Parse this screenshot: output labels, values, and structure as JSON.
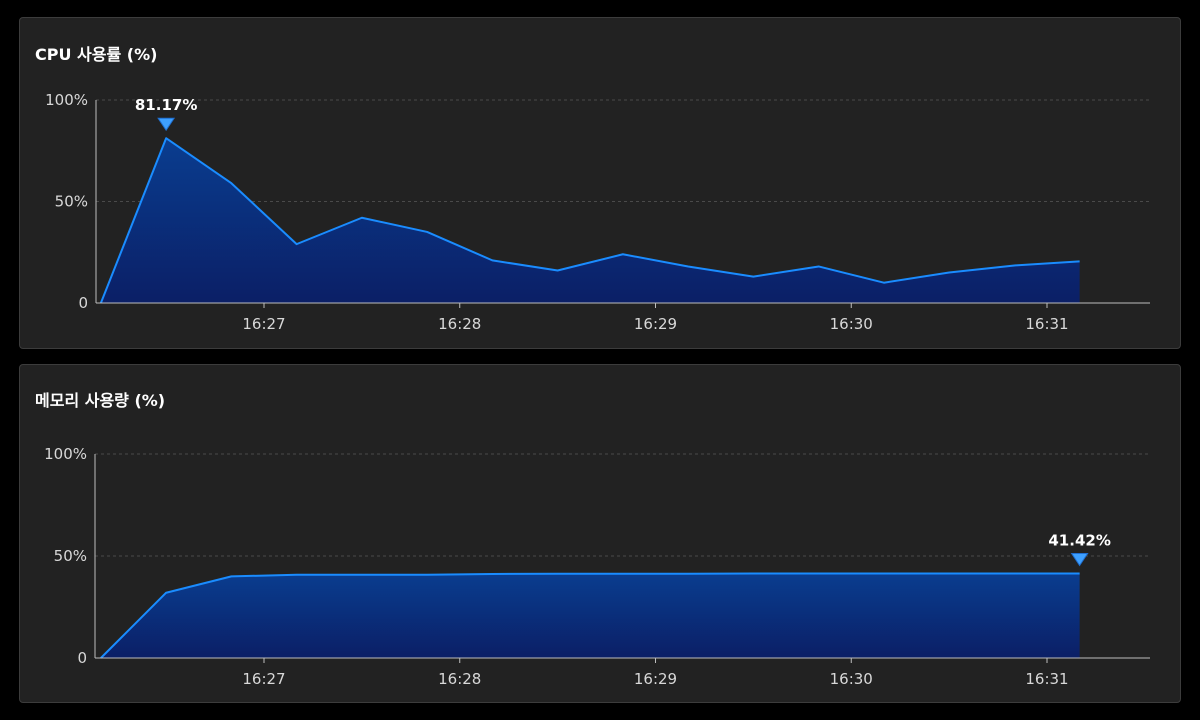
{
  "charts": {
    "cpu": {
      "title": "CPU 사용률 (%)"
    },
    "memory": {
      "title": "메모리 사용량 (%)"
    }
  },
  "colors": {
    "background": "#000000",
    "panel": "#222222",
    "line": "#1a8cff",
    "fill_top": "#0a3d8f",
    "fill_bottom": "#0b1f66",
    "marker": "#3ea0ff",
    "grid": "#4a4a4a",
    "axis": "#bfbfbf"
  },
  "chart_data": [
    {
      "type": "area",
      "title": "CPU 사용률 (%)",
      "xlabel": "",
      "ylabel": "",
      "ylim": [
        0,
        100
      ],
      "y_ticks": [
        0,
        50,
        100
      ],
      "y_tick_labels": [
        "0",
        "50%",
        "100%"
      ],
      "x_ticks": [
        "16:27",
        "16:28",
        "16:29",
        "16:30",
        "16:31"
      ],
      "x_minutes_range": [
        "16:26:10",
        "16:31:15"
      ],
      "grid": true,
      "legend": "none",
      "x": [
        "16:26:10",
        "16:26:30",
        "16:26:50",
        "16:27:10",
        "16:27:30",
        "16:27:50",
        "16:28:10",
        "16:28:30",
        "16:28:50",
        "16:29:10",
        "16:29:30",
        "16:29:50",
        "16:30:10",
        "16:30:30",
        "16:30:50",
        "16:31:10"
      ],
      "values": [
        0,
        81.17,
        59,
        29,
        42,
        35,
        21,
        16,
        24,
        18,
        13,
        18,
        10,
        15,
        18.5,
        20.5
      ],
      "peak_label": "81.17%",
      "peak_index": 1
    },
    {
      "type": "area",
      "title": "메모리 사용량 (%)",
      "xlabel": "",
      "ylabel": "",
      "ylim": [
        0,
        100
      ],
      "y_ticks": [
        0,
        50,
        100
      ],
      "y_tick_labels": [
        "0",
        "50%",
        "100%"
      ],
      "x_ticks": [
        "16:27",
        "16:28",
        "16:29",
        "16:30",
        "16:31"
      ],
      "grid": true,
      "legend": "none",
      "x": [
        "16:26:10",
        "16:26:30",
        "16:26:50",
        "16:27:10",
        "16:27:30",
        "16:27:50",
        "16:28:10",
        "16:28:30",
        "16:28:50",
        "16:29:10",
        "16:29:30",
        "16:29:50",
        "16:30:10",
        "16:30:30",
        "16:30:50",
        "16:31:10"
      ],
      "values": [
        0,
        32,
        40,
        40.8,
        40.8,
        40.8,
        41.2,
        41.3,
        41.3,
        41.3,
        41.4,
        41.4,
        41.4,
        41.4,
        41.4,
        41.42
      ],
      "peak_label": "41.42%",
      "peak_index": 15
    }
  ]
}
